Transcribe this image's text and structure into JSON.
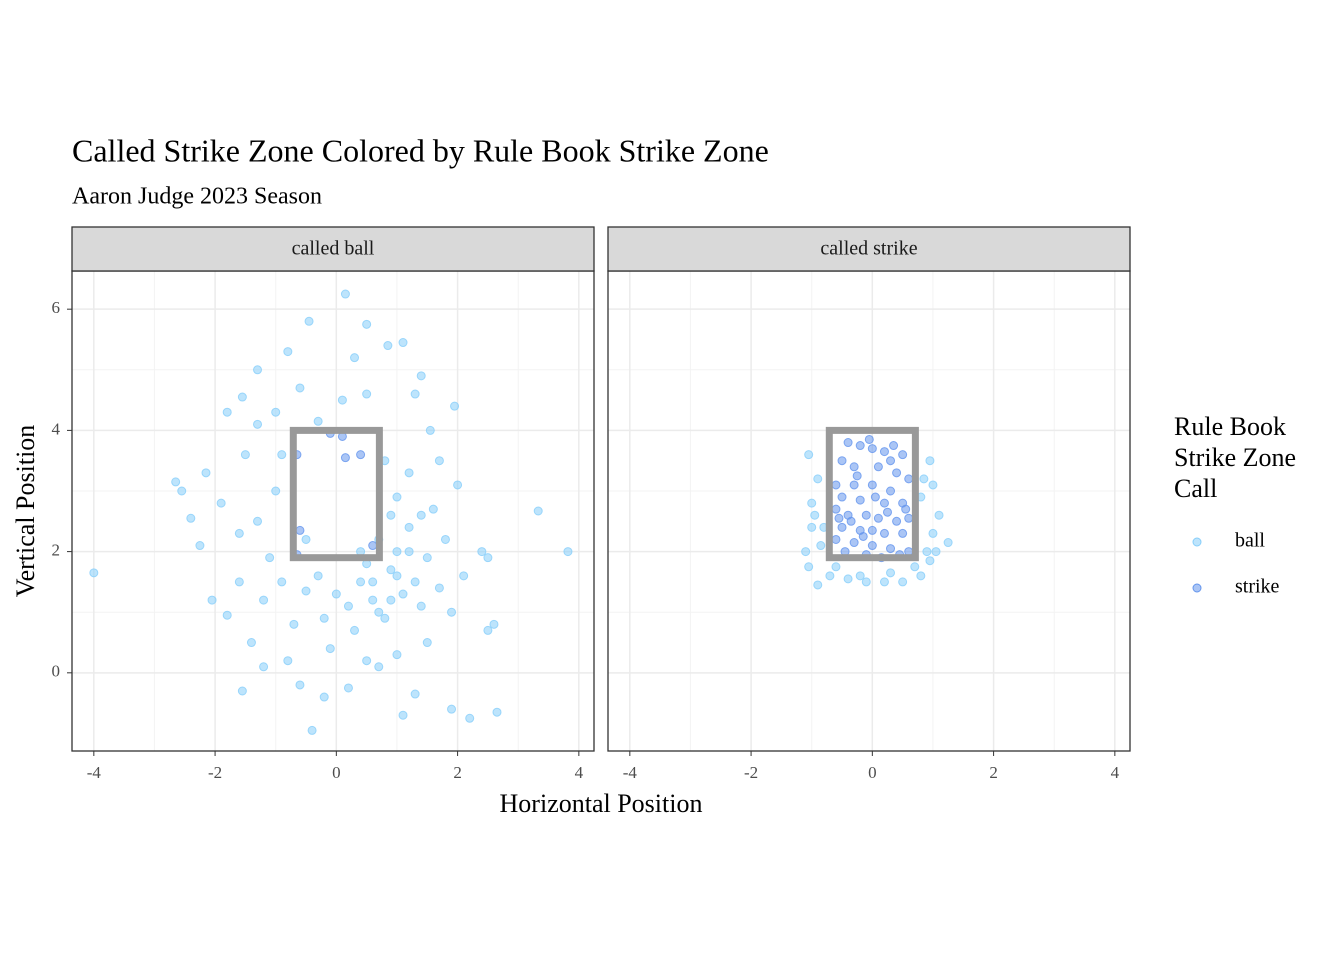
{
  "title": "Called Strike Zone Colored by Rule Book Strike Zone",
  "subtitle": "Aaron Judge 2023 Season",
  "x_label": "Horizontal Position",
  "y_label": "Vertical Position",
  "legend_title": [
    "Rule Book",
    "Strike Zone",
    "Call"
  ],
  "chart_data": [
    {
      "type": "scatter",
      "facet": "called ball",
      "xlim": [
        -4.36,
        4.25
      ],
      "ylim": [
        -1.29,
        6.63
      ],
      "xticks": [
        -4,
        -2,
        0,
        2,
        4
      ],
      "yticks": [
        0,
        2,
        4,
        6
      ],
      "grid": true,
      "zone": {
        "x": [
          -0.71,
          0.71
        ],
        "y": [
          1.9,
          4.0
        ],
        "color": "#999999"
      },
      "series": [
        {
          "name": "ball",
          "color": "#87cefa",
          "x": [
            -4.0,
            3.82,
            3.33,
            0.15,
            -0.45,
            0.5,
            -0.8,
            1.1,
            0.85,
            -1.3,
            1.4,
            -1.55,
            1.95,
            -1.8,
            -2.15,
            -2.55,
            -2.65,
            -2.4,
            -2.25,
            -2.05,
            -1.8,
            -1.55,
            -1.4,
            -1.2,
            -0.6,
            -0.4,
            -0.2,
            0.2,
            0.7,
            1.1,
            1.3,
            1.9,
            2.2,
            2.65,
            2.6,
            2.5,
            2.1,
            2.4,
            2.5,
            2.0,
            1.7,
            1.55,
            -1.0,
            -0.3,
            0.1,
            0.5,
            -0.9,
            -1.0,
            -1.3,
            -1.6,
            -1.1,
            -0.9,
            -0.5,
            0,
            0.4,
            0.6,
            0.9,
            1.0,
            1.2,
            1.3,
            1.5,
            1.6,
            1.0,
            0.8,
            1.2,
            1.4,
            1.7,
            0.8,
            0.3,
            -0.2,
            -0.7,
            -1.2,
            0.5,
            0.7,
            0.9,
            1.1,
            0.2,
            -0.3,
            1.8,
            1.9,
            1.5,
            1.0,
            0.5,
            -0.1,
            -0.8,
            -1.6,
            -1.9,
            -1.5,
            -0.6,
            0.3,
            -1.3,
            1.3,
            0.7,
            1.0,
            0.6,
            1.2,
            0.4,
            0.9,
            1.4,
            -0.5
          ],
          "y": [
            1.65,
            2.0,
            2.67,
            6.25,
            5.8,
            5.75,
            5.3,
            5.45,
            5.4,
            5.0,
            4.9,
            4.55,
            4.4,
            4.3,
            3.3,
            3.0,
            3.15,
            2.55,
            2.1,
            1.2,
            0.95,
            -0.3,
            0.5,
            0.1,
            -0.2,
            -0.95,
            -0.4,
            -0.25,
            0.1,
            -0.7,
            -0.35,
            -0.6,
            -0.75,
            -0.65,
            0.8,
            0.7,
            1.6,
            2.0,
            1.9,
            3.1,
            3.5,
            4.0,
            4.3,
            4.15,
            4.5,
            4.6,
            3.6,
            3.0,
            2.5,
            2.3,
            1.9,
            1.5,
            1.35,
            1.3,
            1.5,
            1.2,
            1.7,
            2.0,
            2.4,
            1.5,
            1.9,
            2.7,
            2.9,
            3.5,
            3.3,
            1.1,
            1.4,
            0.9,
            0.7,
            0.9,
            0.8,
            1.2,
            1.8,
            2.2,
            2.6,
            1.3,
            1.1,
            1.6,
            2.2,
            1.0,
            0.5,
            0.3,
            0.2,
            0.4,
            0.2,
            1.5,
            2.8,
            3.6,
            4.7,
            5.2,
            4.1,
            4.6,
            1.0,
            1.6,
            1.5,
            2.0,
            2.0,
            1.2,
            2.6,
            2.2
          ]
        },
        {
          "name": "strike",
          "color": "#6495ed",
          "x": [
            -0.1,
            0.1,
            -0.65,
            0.15,
            -0.6,
            0.4,
            -0.65,
            0.6
          ],
          "y": [
            3.95,
            3.9,
            3.6,
            3.55,
            2.35,
            3.6,
            1.95,
            2.1
          ]
        }
      ]
    },
    {
      "type": "scatter",
      "facet": "called strike",
      "xlim": [
        -4.36,
        4.25
      ],
      "ylim": [
        -1.29,
        6.63
      ],
      "xticks": [
        -4,
        -2,
        0,
        2,
        4
      ],
      "yticks": [
        0,
        2,
        4,
        6
      ],
      "grid": true,
      "zone": {
        "x": [
          -0.71,
          0.71
        ],
        "y": [
          1.9,
          4.0
        ],
        "color": "#999999"
      },
      "series": [
        {
          "name": "ball",
          "color": "#87cefa",
          "x": [
            -1.05,
            -1.0,
            -1.1,
            -1.05,
            -0.9,
            -0.8,
            -0.9,
            -0.7,
            -0.4,
            -0.1,
            0.2,
            0.5,
            0.8,
            0.95,
            1.0,
            1.1,
            1.0,
            0.95,
            1.25,
            0.8,
            -0.85,
            0.9,
            -0.6,
            0.3,
            0.7,
            -1.0,
            1.05,
            -0.2,
            0.85,
            -0.95
          ],
          "y": [
            3.6,
            2.8,
            2.0,
            1.75,
            1.45,
            2.4,
            3.2,
            1.6,
            1.55,
            1.5,
            1.5,
            1.5,
            1.6,
            1.85,
            2.3,
            2.6,
            3.1,
            3.5,
            2.15,
            2.9,
            2.1,
            2.0,
            1.75,
            1.65,
            1.75,
            2.4,
            2.0,
            1.6,
            3.2,
            2.6
          ]
        },
        {
          "name": "strike",
          "color": "#6495ed",
          "x": [
            -0.4,
            -0.2,
            0.0,
            0.2,
            0.5,
            -0.5,
            -0.3,
            0.1,
            0.4,
            0.6,
            -0.6,
            -0.3,
            0.0,
            0.3,
            -0.5,
            -0.2,
            0.2,
            0.5,
            -0.6,
            -0.4,
            -0.1,
            0.1,
            0.4,
            0.6,
            -0.5,
            -0.2,
            0.2,
            0.5,
            -0.6,
            -0.3,
            0.0,
            0.3,
            0.6,
            -0.45,
            -0.1,
            0.15,
            0.45,
            -0.05,
            0.35,
            -0.35,
            0.05,
            0.25,
            -0.15,
            0.55,
            -0.55,
            0.0,
            -0.25,
            0.3
          ],
          "y": [
            3.8,
            3.75,
            3.7,
            3.65,
            3.6,
            3.5,
            3.4,
            3.4,
            3.3,
            3.2,
            3.1,
            3.1,
            3.1,
            3.0,
            2.9,
            2.85,
            2.8,
            2.8,
            2.7,
            2.6,
            2.6,
            2.55,
            2.5,
            2.55,
            2.4,
            2.35,
            2.3,
            2.3,
            2.2,
            2.15,
            2.1,
            2.05,
            2.0,
            2.0,
            1.95,
            1.9,
            1.95,
            3.85,
            3.75,
            2.5,
            2.9,
            2.65,
            2.25,
            2.7,
            2.55,
            2.35,
            3.25,
            3.5
          ]
        }
      ]
    }
  ]
}
